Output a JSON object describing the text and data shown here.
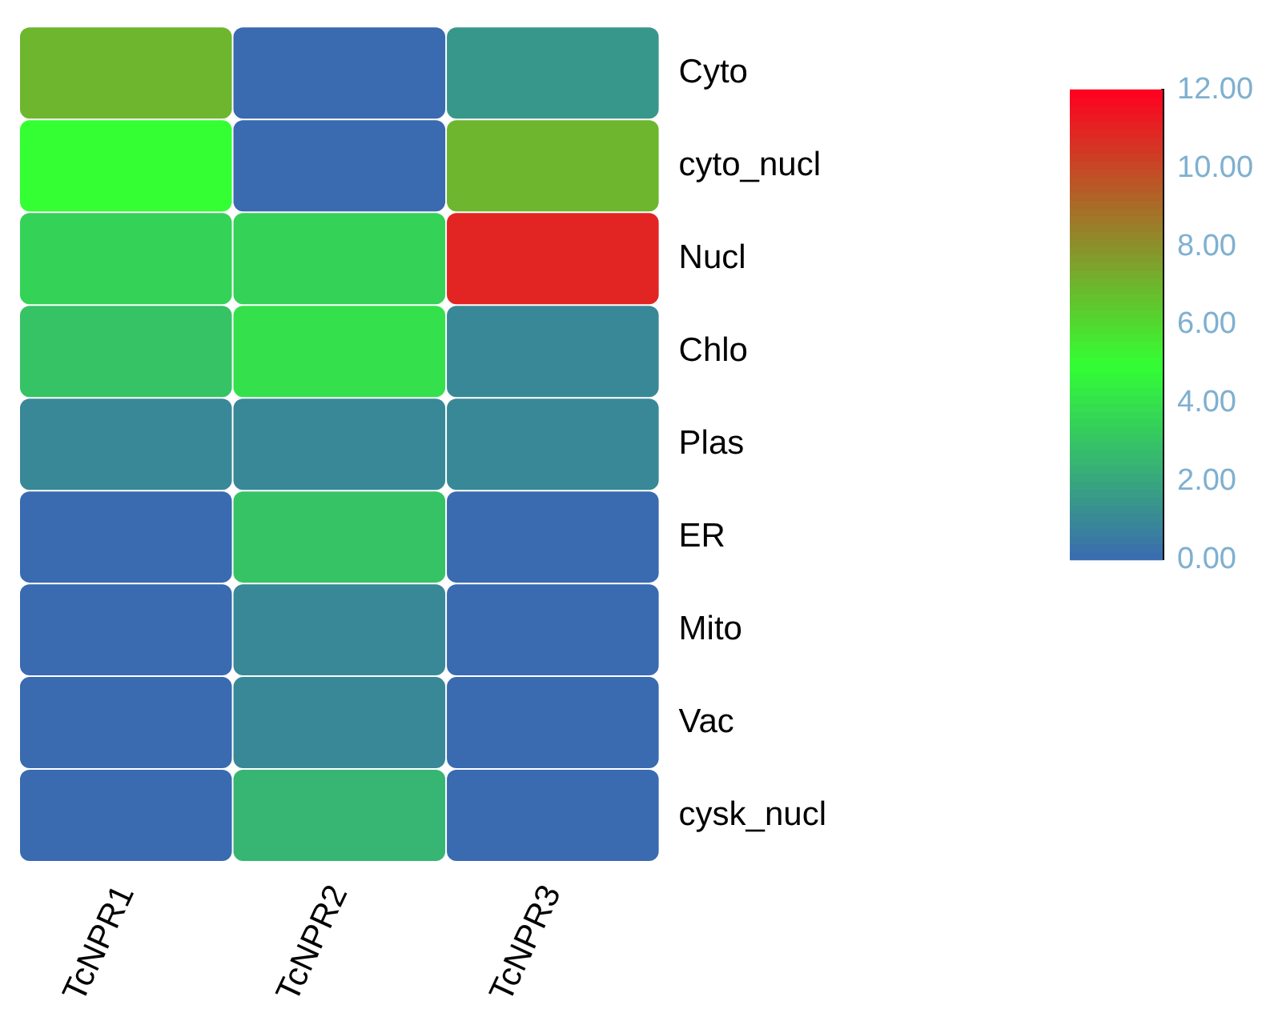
{
  "chart_data": {
    "type": "heatmap",
    "categories": [
      "TcNPR1",
      "TcNPR2",
      "TcNPR3"
    ],
    "y_categories": [
      "Cyto",
      "cyto_nucl",
      "Nucl",
      "Chlo",
      "Plas",
      "ER",
      "Mito",
      "Vac",
      "cysk_nucl"
    ],
    "cells": [
      [
        7,
        0,
        1.5
      ],
      [
        5,
        0,
        7
      ],
      [
        3.5,
        3.5,
        11
      ],
      [
        3,
        4,
        1
      ],
      [
        1,
        1,
        1
      ],
      [
        0,
        3,
        0
      ],
      [
        0,
        1,
        0
      ],
      [
        0,
        1,
        0
      ],
      [
        0,
        2.5,
        0
      ]
    ],
    "clim": [
      0,
      12
    ],
    "cticks": [
      {
        "value": 0,
        "label": "0.00"
      },
      {
        "value": 2,
        "label": "2.00"
      },
      {
        "value": 4,
        "label": "4.00"
      },
      {
        "value": 6,
        "label": "6.00"
      },
      {
        "value": 8,
        "label": "8.00"
      },
      {
        "value": 10,
        "label": "10.00"
      },
      {
        "value": 12,
        "label": "12.00"
      }
    ]
  }
}
